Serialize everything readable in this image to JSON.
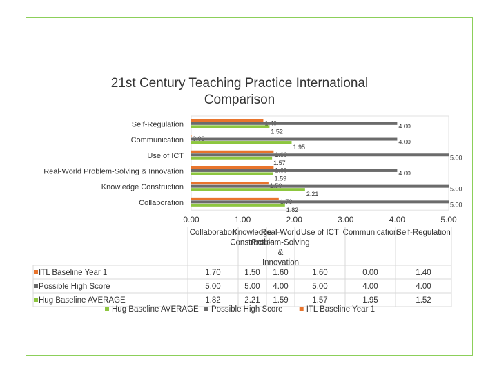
{
  "slide": {
    "frame_color": "#8ccf5a"
  },
  "chart_data": {
    "type": "bar",
    "orientation": "horizontal",
    "title": "21st Century Teaching Practice International Comparison",
    "categories": [
      "Collaboration",
      "Knowledge Construction",
      "Real-World Problem-Solving & Innovation",
      "Use of ICT",
      "Communication",
      "Self-Regulation"
    ],
    "table_categories": [
      "Collaboration",
      "Knowledge Construction",
      "Real-World Problem-Solving & Innovation",
      "Use of ICT",
      "Communication",
      "Self-Regulation"
    ],
    "series": [
      {
        "name": "ITL Baseline Year 1",
        "color": "#e8742c",
        "values": [
          1.7,
          1.5,
          1.6,
          1.6,
          0.0,
          1.4
        ],
        "labels": [
          "1.70",
          "1.50",
          "1.60",
          "1.60",
          "0.00",
          "1.40"
        ]
      },
      {
        "name": "Possible High Score",
        "color": "#6b6b6b",
        "values": [
          5.0,
          5.0,
          4.0,
          5.0,
          4.0,
          4.0
        ],
        "labels": [
          "5.00",
          "5.00",
          "4.00",
          "5.00",
          "4.00",
          "4.00"
        ]
      },
      {
        "name": "Hug Baseline AVERAGE",
        "color": "#8dc63f",
        "values": [
          1.82,
          2.21,
          1.59,
          1.57,
          1.95,
          1.52
        ],
        "labels": [
          "1.82",
          "2.21",
          "1.59",
          "1.57",
          "1.95",
          "1.52"
        ]
      }
    ],
    "legend_order": [
      "Hug Baseline AVERAGE",
      "Possible High Score",
      "ITL Baseline Year 1"
    ],
    "xlim": [
      0,
      5
    ],
    "xticks": [
      0,
      1,
      2,
      3,
      4,
      5
    ],
    "xtick_labels": [
      "0.00",
      "1.00",
      "2.00",
      "3.00",
      "4.00",
      "5.00"
    ],
    "legend_position": "bottom",
    "data_table": true,
    "grid": false
  }
}
